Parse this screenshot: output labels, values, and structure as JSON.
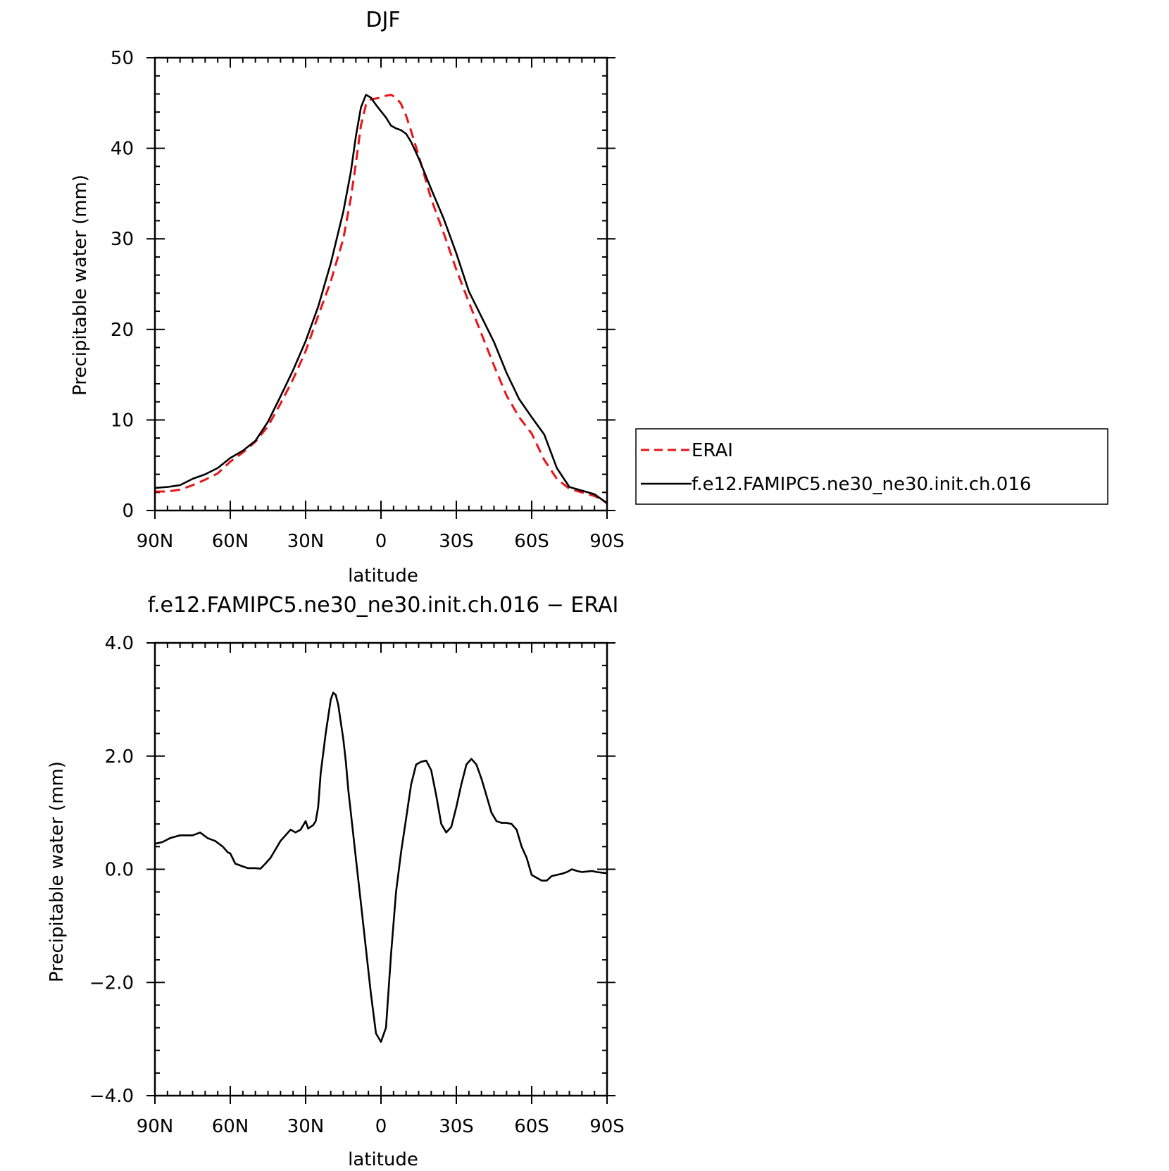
{
  "chart_data": [
    {
      "type": "line",
      "title": "DJF",
      "xlabel": "latitude",
      "ylabel": "Precipitable water (mm)",
      "xlim": [
        90,
        -90
      ],
      "ylim": [
        0,
        50
      ],
      "x_ticks": [
        90,
        60,
        30,
        0,
        -30,
        -60,
        -90
      ],
      "x_tick_labels": [
        "90N",
        "60N",
        "30N",
        "0",
        "30S",
        "60S",
        "90S"
      ],
      "y_ticks": [
        0,
        10,
        20,
        30,
        40,
        50
      ],
      "y_tick_labels": [
        "0",
        "10",
        "20",
        "30",
        "40",
        "50"
      ],
      "legend_position": "right",
      "series": [
        {
          "name": "ERAI",
          "color": "#e8141a",
          "dash": "dashed",
          "x": [
            90,
            85,
            80,
            75,
            70,
            65,
            60,
            55,
            50,
            45,
            40,
            35,
            30,
            25,
            20,
            15,
            12,
            10,
            8,
            6,
            4,
            2,
            0,
            -2,
            -4,
            -6,
            -8,
            -10,
            -12,
            -15,
            -20,
            -25,
            -30,
            -35,
            -40,
            -45,
            -50,
            -55,
            -60,
            -65,
            -70,
            -75,
            -80,
            -85,
            -88,
            -90
          ],
          "y": [
            2.1,
            2.1,
            2.3,
            2.8,
            3.4,
            4.1,
            5.4,
            6.4,
            7.6,
            9.3,
            11.8,
            14.5,
            17.6,
            21.5,
            25.3,
            30.0,
            34.5,
            38.3,
            42.5,
            44.8,
            45.4,
            45.5,
            45.6,
            45.8,
            45.9,
            45.6,
            44.9,
            43.6,
            41.9,
            39.2,
            34.4,
            30.6,
            26.6,
            23.0,
            19.5,
            16.0,
            12.7,
            10.3,
            8.5,
            5.6,
            3.5,
            2.4,
            2.0,
            1.6,
            1.2,
            0.8
          ]
        },
        {
          "name": "f.e12.FAMIPC5.ne30_ne30.init.ch.016",
          "color": "#000000",
          "dash": "solid",
          "x": [
            90,
            85,
            80,
            75,
            70,
            65,
            60,
            55,
            50,
            45,
            40,
            35,
            30,
            25,
            20,
            15,
            12,
            10,
            8,
            6,
            4,
            2,
            0,
            -2,
            -4,
            -6,
            -8,
            -10,
            -12,
            -15,
            -20,
            -25,
            -30,
            -35,
            -40,
            -45,
            -50,
            -55,
            -60,
            -65,
            -70,
            -75,
            -80,
            -85,
            -88,
            -90
          ],
          "y": [
            2.5,
            2.6,
            2.8,
            3.5,
            4.0,
            4.7,
            5.8,
            6.6,
            7.7,
            9.8,
            12.6,
            15.5,
            18.7,
            22.5,
            27.3,
            33.0,
            37.4,
            41.3,
            44.5,
            45.9,
            45.6,
            44.8,
            44.1,
            43.4,
            42.5,
            42.2,
            42.0,
            41.6,
            40.7,
            38.9,
            35.5,
            32.2,
            28.4,
            24.2,
            21.4,
            18.6,
            15.2,
            12.3,
            10.3,
            8.4,
            4.7,
            2.6,
            2.2,
            1.8,
            1.2,
            0.8
          ]
        }
      ]
    },
    {
      "type": "line",
      "title": "f.e12.FAMIPC5.ne30_ne30.init.ch.016 − ERAI",
      "xlabel": "latitude",
      "ylabel": "Precipitable water (mm)",
      "xlim": [
        90,
        -90
      ],
      "ylim": [
        -4,
        4
      ],
      "x_ticks": [
        90,
        60,
        30,
        0,
        -30,
        -60,
        -90
      ],
      "x_tick_labels": [
        "90N",
        "60N",
        "30N",
        "0",
        "30S",
        "60S",
        "90S"
      ],
      "y_ticks": [
        -4,
        -2,
        0,
        2,
        4
      ],
      "y_tick_labels": [
        "−4.0",
        "−2.0",
        "0.0",
        "2.0",
        "4.0"
      ],
      "series": [
        {
          "name": "",
          "color": "#000000",
          "dash": "solid",
          "x": [
            90,
            87,
            84,
            80,
            75,
            72,
            69,
            66,
            63,
            61,
            60,
            58,
            55,
            53,
            50,
            48,
            46,
            44,
            42,
            40,
            38,
            36,
            34,
            32,
            30,
            29,
            28,
            27,
            26,
            25,
            24,
            22,
            20,
            19,
            18,
            17,
            16,
            15,
            14,
            13,
            12,
            10,
            8,
            6,
            4,
            2,
            0,
            -2,
            -4,
            -6,
            -8,
            -10,
            -12,
            -14,
            -16,
            -18,
            -20,
            -22,
            -24,
            -26,
            -28,
            -30,
            -32,
            -34,
            -36,
            -38,
            -40,
            -42,
            -44,
            -46,
            -48,
            -50,
            -52,
            -54,
            -56,
            -58,
            -60,
            -62,
            -64,
            -66,
            -68,
            -70,
            -72,
            -74,
            -76,
            -78,
            -80,
            -82,
            -84,
            -86,
            -88,
            -90
          ],
          "y": [
            0.45,
            0.48,
            0.55,
            0.6,
            0.6,
            0.65,
            0.55,
            0.5,
            0.4,
            0.3,
            0.28,
            0.1,
            0.05,
            0.02,
            0.02,
            0.01,
            0.1,
            0.2,
            0.35,
            0.5,
            0.6,
            0.7,
            0.65,
            0.7,
            0.85,
            0.72,
            0.75,
            0.78,
            0.85,
            1.1,
            1.7,
            2.4,
            3.0,
            3.12,
            3.08,
            2.9,
            2.6,
            2.3,
            1.9,
            1.4,
            1.0,
            0.2,
            -0.6,
            -1.4,
            -2.2,
            -2.9,
            -3.05,
            -2.8,
            -1.5,
            -0.4,
            0.3,
            0.9,
            1.5,
            1.85,
            1.9,
            1.92,
            1.75,
            1.3,
            0.8,
            0.65,
            0.75,
            1.1,
            1.5,
            1.85,
            1.95,
            1.85,
            1.6,
            1.3,
            1.0,
            0.85,
            0.82,
            0.82,
            0.8,
            0.7,
            0.4,
            0.2,
            -0.1,
            -0.15,
            -0.2,
            -0.2,
            -0.12,
            -0.1,
            -0.08,
            -0.05,
            0.0,
            -0.03,
            -0.05,
            -0.04,
            -0.03,
            -0.05,
            -0.06,
            -0.07
          ]
        }
      ]
    }
  ]
}
